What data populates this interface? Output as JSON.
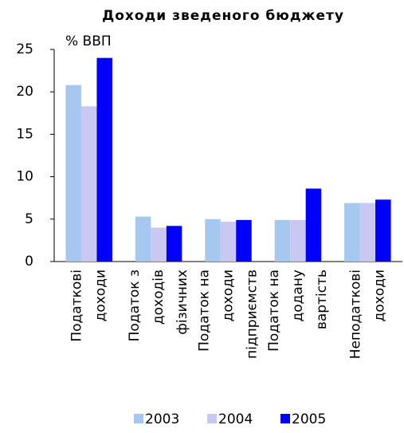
{
  "chart_data": {
    "type": "bar",
    "title": "Доходи зведеного бюджету",
    "y_label": "% ВВП",
    "categories": [
      [
        "Податкові",
        "доходи"
      ],
      [
        "Податок з",
        "доходів",
        "фізичних"
      ],
      [
        "Податок на",
        "доходи",
        "підприємств"
      ],
      [
        "Податок на",
        "додану",
        "вартість"
      ],
      [
        "Неподаткові",
        "доходи"
      ]
    ],
    "series": [
      {
        "name": "2003",
        "color": "#a6c8f0",
        "values": [
          20.8,
          5.3,
          5.0,
          4.9,
          6.9
        ]
      },
      {
        "name": "2004",
        "color": "#c8c8f2",
        "values": [
          18.3,
          4.0,
          4.7,
          4.9,
          6.9
        ]
      },
      {
        "name": "2005",
        "color": "#0000ff",
        "values": [
          24.0,
          4.2,
          4.9,
          8.6,
          7.3
        ]
      }
    ],
    "ylim": [
      0,
      25
    ],
    "yticks": [
      0,
      5,
      10,
      15,
      20,
      25
    ],
    "grid": false,
    "legend": "bottom"
  }
}
